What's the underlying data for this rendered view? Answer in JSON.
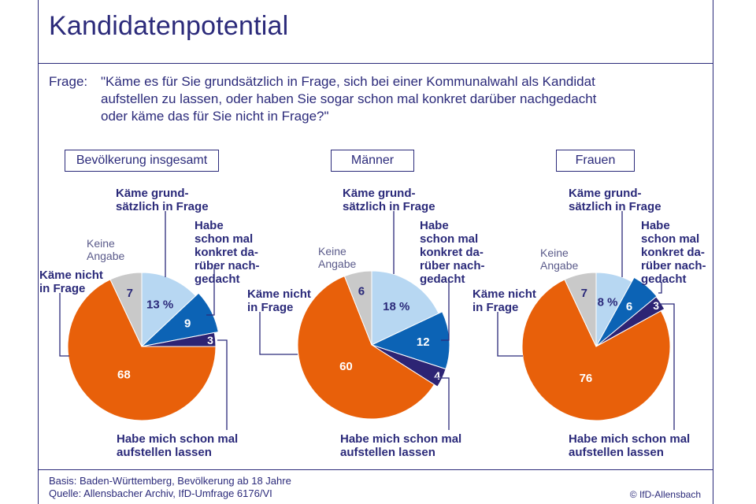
{
  "page": {
    "title": "Kandidatenpotential",
    "question_prefix": "Frage:",
    "question_lines": [
      "\"Käme es für Sie grundsätzlich in Frage, sich bei einer Kommunalwahl als Kandidat",
      "aufstellen zu lassen, oder haben Sie sogar schon mal konkret darüber nachgedacht",
      "oder käme das für Sie nicht in Frage?\""
    ],
    "footer": {
      "basis": "Basis: Baden-Württemberg, Bevölkerung ab 18 Jahre",
      "quelle": "Quelle: Allensbacher Archiv, IfD-Umfrage 6176/VI",
      "copyright": "© IfD-Allensbach"
    }
  },
  "colors": {
    "text": "#2b2a7a",
    "kaeme_grundsaetzlich": "#b7d7f2",
    "habe_nachgedacht": "#0c63b5",
    "habe_aufstellen": "#2d2474",
    "kaeme_nicht": "#e8600a",
    "keine_angabe": "#c9c9c9"
  },
  "chart_data": [
    {
      "type": "pie",
      "title": "Bevölkerung insgesamt",
      "slices": [
        {
          "label": "Käme grundsätzlich in Frage",
          "value": 13,
          "display": "13 %"
        },
        {
          "label": "Habe schon mal konkret darüber nachgedacht",
          "value": 9,
          "display": "9"
        },
        {
          "label": "Habe mich schon mal aufstellen lassen",
          "value": 3,
          "display": "3"
        },
        {
          "label": "Käme nicht in Frage",
          "value": 68,
          "display": "68"
        },
        {
          "label": "Keine Angabe",
          "value": 7,
          "display": "7"
        }
      ]
    },
    {
      "type": "pie",
      "title": "Männer",
      "slices": [
        {
          "label": "Käme grundsätzlich in Frage",
          "value": 18,
          "display": "18 %"
        },
        {
          "label": "Habe schon mal konkret darüber nachgedacht",
          "value": 12,
          "display": "12"
        },
        {
          "label": "Habe mich schon mal aufstellen lassen",
          "value": 4,
          "display": "4"
        },
        {
          "label": "Käme nicht in Frage",
          "value": 60,
          "display": "60"
        },
        {
          "label": "Keine Angabe",
          "value": 6,
          "display": "6"
        }
      ]
    },
    {
      "type": "pie",
      "title": "Frauen",
      "slices": [
        {
          "label": "Käme grundsätzlich in Frage",
          "value": 8,
          "display": "8 %"
        },
        {
          "label": "Habe schon mal konkret darüber nachgedacht",
          "value": 6,
          "display": "6"
        },
        {
          "label": "Habe mich schon mal aufstellen lassen",
          "value": 3,
          "display": "3"
        },
        {
          "label": "Käme nicht in Frage",
          "value": 76,
          "display": "76"
        },
        {
          "label": "Keine Angabe",
          "value": 7,
          "display": "7"
        }
      ]
    }
  ],
  "callouts": {
    "kaeme_grundsaetzlich": [
      "Käme grund-",
      "sätzlich in Frage"
    ],
    "habe_nachgedacht": [
      "Habe",
      "schon mal",
      "konkret da-",
      "rüber nach-",
      "gedacht"
    ],
    "habe_aufstellen": [
      "Habe mich schon mal",
      "aufstellen lassen"
    ],
    "kaeme_nicht": [
      "Käme nicht",
      "in Frage"
    ],
    "keine_angabe": [
      "Keine",
      "Angabe"
    ]
  }
}
